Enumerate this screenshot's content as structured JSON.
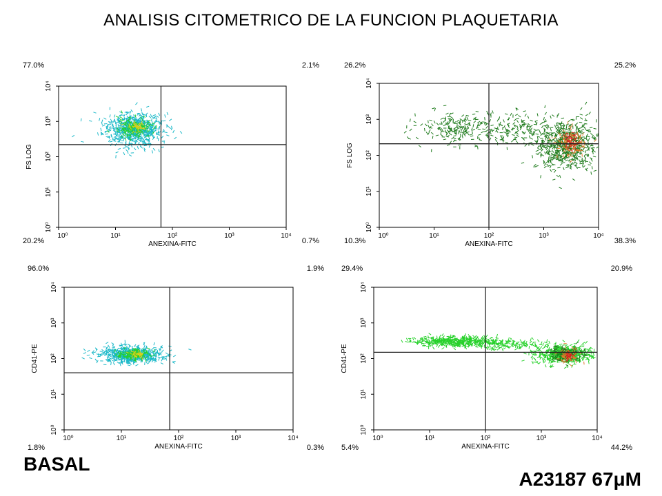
{
  "page": {
    "title": "ANALISIS CITOMETRICO DE LA FUNCION PLAQUETARIA",
    "label_left": "BASAL",
    "label_right": "A23187 67μM"
  },
  "colors": {
    "cyan": "#19b8c8",
    "green_light": "#26d12a",
    "green_dark": "#1d7a1b",
    "yellow": "#e0cf1a",
    "orange": "#e07a2a",
    "red": "#d92020"
  },
  "chart_data": [
    {
      "type": "scatter",
      "panel": "top-left",
      "xlabel": "ANEXINA-FITC",
      "ylabel": "FS LOG",
      "x_ticks": [
        "10⁰",
        "10¹",
        "10²",
        "10³",
        "10⁴"
      ],
      "y_ticks": [
        "10⁰",
        "10¹",
        "10²",
        "10³",
        "10⁴"
      ],
      "quadrants": {
        "top_left": "77.0%",
        "top_right": "2.1%",
        "bottom_left": "20.2%",
        "bottom_right": "0.7%"
      },
      "gate": {
        "x": 63,
        "y": 220
      },
      "axis_log": true,
      "xlim": [
        1,
        10000
      ],
      "ylim": [
        1,
        10000
      ],
      "clusters": [
        {
          "x": 20,
          "y": 600,
          "count": 700,
          "color": "cyan",
          "spread_x": 0.26,
          "spread_y": 0.23
        },
        {
          "x": 22,
          "y": 650,
          "count": 160,
          "color": "green_light",
          "spread_x": 0.15,
          "spread_y": 0.13
        },
        {
          "x": 24,
          "y": 700,
          "count": 35,
          "color": "yellow",
          "spread_x": 0.08,
          "spread_y": 0.07
        }
      ]
    },
    {
      "type": "scatter",
      "panel": "top-right",
      "xlabel": "ANEXINA-FITC",
      "ylabel": "FS LOG",
      "x_ticks": [
        "10⁰",
        "10¹",
        "10²",
        "10³",
        "10⁴"
      ],
      "y_ticks": [
        "10⁰",
        "10¹",
        "10²",
        "10³",
        "10⁴"
      ],
      "quadrants": {
        "top_left": "26.2%",
        "top_right": "25.2%",
        "bottom_left": "10.3%",
        "bottom_right": "38.3%"
      },
      "gate": {
        "x": 100,
        "y": 210
      },
      "axis_log": true,
      "xlim": [
        1,
        10000
      ],
      "ylim": [
        1,
        10000
      ],
      "clusters": [
        {
          "x": 25,
          "y": 600,
          "count": 180,
          "color": "green_dark",
          "spread_x": 0.35,
          "spread_y": 0.22
        },
        {
          "x": 2500,
          "y": 180,
          "count": 600,
          "color": "green_dark",
          "spread_x": 0.28,
          "spread_y": 0.35
        },
        {
          "x": 3000,
          "y": 220,
          "count": 110,
          "color": "orange",
          "spread_x": 0.13,
          "spread_y": 0.2
        },
        {
          "x": 3200,
          "y": 250,
          "count": 45,
          "color": "red",
          "spread_x": 0.08,
          "spread_y": 0.12
        },
        {
          "x": 300,
          "y": 500,
          "count": 200,
          "color": "green_dark",
          "spread_x": 0.45,
          "spread_y": 0.25
        }
      ]
    },
    {
      "type": "scatter",
      "panel": "bottom-left",
      "xlabel": "ANEXINA-FITC",
      "ylabel": "CD41-PE",
      "x_ticks": [
        "10⁰",
        "10¹",
        "10²",
        "10³",
        "10⁴"
      ],
      "y_ticks": [
        "10⁰",
        "10¹",
        "10²",
        "10³",
        "10⁴"
      ],
      "quadrants": {
        "top_left": "96.0%",
        "top_right": "1.9%",
        "bottom_left": "1.8%",
        "bottom_right": "0.3%"
      },
      "gate": {
        "x": 70,
        "y": 40
      },
      "axis_log": true,
      "xlim": [
        1,
        10000
      ],
      "ylim": [
        1,
        10000
      ],
      "clusters": [
        {
          "x": 15,
          "y": 130,
          "count": 650,
          "color": "cyan",
          "spread_x": 0.27,
          "spread_y": 0.11
        },
        {
          "x": 16,
          "y": 130,
          "count": 160,
          "color": "green_light",
          "spread_x": 0.14,
          "spread_y": 0.07
        },
        {
          "x": 18,
          "y": 130,
          "count": 30,
          "color": "yellow",
          "spread_x": 0.07,
          "spread_y": 0.04
        }
      ]
    },
    {
      "type": "scatter",
      "panel": "bottom-right",
      "xlabel": "ANEXINA-FITC",
      "ylabel": "CD41-PE",
      "x_ticks": [
        "10⁰",
        "10¹",
        "10²",
        "10³",
        "10⁴"
      ],
      "y_ticks": [
        "10⁰",
        "10¹",
        "10²",
        "10³",
        "10⁴"
      ],
      "quadrants": {
        "top_left": "29.4%",
        "top_right": "20.9%",
        "bottom_left": "5.4%",
        "bottom_right": "44.2%"
      },
      "gate": {
        "x": 100,
        "y": 150
      },
      "axis_log": true,
      "xlim": [
        1,
        10000
      ],
      "ylim": [
        1,
        10000
      ],
      "clusters": [
        {
          "x": 30,
          "y": 300,
          "count": 450,
          "color": "green_light",
          "spread_x": 0.38,
          "spread_y": 0.07
        },
        {
          "x": 250,
          "y": 250,
          "count": 150,
          "color": "green_light",
          "spread_x": 0.4,
          "spread_y": 0.07
        },
        {
          "x": 2500,
          "y": 130,
          "count": 500,
          "color": "green_light",
          "spread_x": 0.26,
          "spread_y": 0.13
        },
        {
          "x": 2800,
          "y": 130,
          "count": 150,
          "color": "green_dark",
          "spread_x": 0.14,
          "spread_y": 0.1
        },
        {
          "x": 3000,
          "y": 120,
          "count": 70,
          "color": "orange",
          "spread_x": 0.09,
          "spread_y": 0.09
        },
        {
          "x": 3200,
          "y": 120,
          "count": 20,
          "color": "red",
          "spread_x": 0.05,
          "spread_y": 0.05
        }
      ]
    }
  ]
}
